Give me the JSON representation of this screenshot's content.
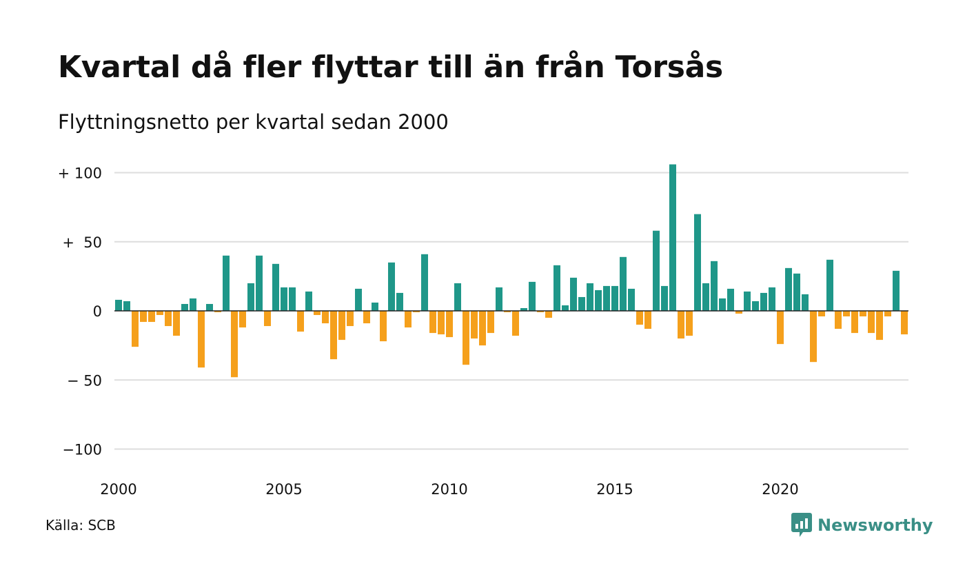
{
  "title": "Kvartal då fler flyttar till än från Torsås",
  "subtitle": "Flyttningsnetto per kvartal sedan 2000",
  "source": "Källa: SCB",
  "brand": {
    "name": "Newsworthy",
    "icon": "newsworthy-logo-icon"
  },
  "colors": {
    "positive": "#1f9789",
    "negative": "#f5a01c",
    "grid": "#dddddd",
    "zero_line": "#222222"
  },
  "chart_data": {
    "type": "bar",
    "title": "Kvartal då fler flyttar till än från Torsås",
    "subtitle": "Flyttningsnetto per kvartal sedan 2000",
    "xlabel": "",
    "ylabel": "",
    "ylim": [
      -110,
      110
    ],
    "x_start": "2000Q1",
    "yticks": [
      100,
      50,
      0,
      -50,
      -100
    ],
    "ytick_labels": [
      "+ 100",
      "+  50",
      "0",
      "− 50",
      "−100"
    ],
    "xticks": [
      2000,
      2005,
      2010,
      2015,
      2020
    ],
    "xtick_labels": [
      "2000",
      "2005",
      "2010",
      "2015",
      "2020"
    ],
    "grid": true,
    "legend": "none",
    "values": [
      8,
      7,
      -26,
      -8,
      -8,
      -3,
      -11,
      -18,
      5,
      9,
      -41,
      5,
      -1,
      40,
      -48,
      -12,
      20,
      40,
      -11,
      34,
      17,
      17,
      -15,
      14,
      -3,
      -9,
      -35,
      -21,
      -11,
      16,
      -9,
      6,
      -22,
      35,
      13,
      -12,
      -1,
      41,
      -16,
      -17,
      -19,
      20,
      -39,
      -20,
      -25,
      -16,
      17,
      -1,
      -18,
      2,
      21,
      -1,
      -5,
      33,
      4,
      24,
      10,
      20,
      15,
      18,
      18,
      39,
      16,
      -10,
      -13,
      58,
      18,
      106,
      -20,
      -18,
      70,
      20,
      36,
      9,
      16,
      -2,
      14,
      7,
      13,
      17,
      -24,
      31,
      27,
      12,
      -37,
      -4,
      37,
      -13,
      -4,
      -16,
      -4,
      -16,
      -21,
      -4,
      29,
      -17
    ]
  }
}
